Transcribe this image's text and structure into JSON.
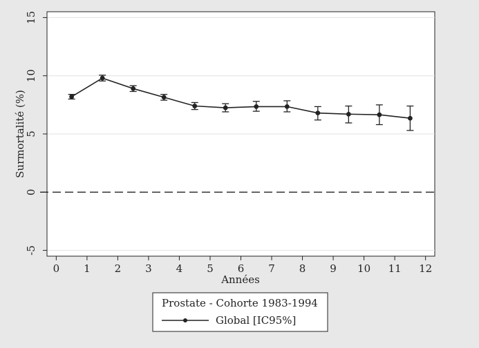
{
  "chart_data": {
    "type": "line",
    "title": "",
    "xlabel": "Années",
    "ylabel": "Surmortalité (%)",
    "xlim": [
      -0.3,
      12.3
    ],
    "ylim": [
      -5.5,
      15.5
    ],
    "xticks": [
      "0",
      "1",
      "2",
      "3",
      "4",
      "5",
      "6",
      "7",
      "8",
      "9",
      "10",
      "11",
      "12"
    ],
    "yticks": [
      "-5",
      "0",
      "5",
      "10",
      "15"
    ],
    "grid": true,
    "reference_line": {
      "y": 0,
      "style": "dashed"
    },
    "legend": {
      "title": "Prostate - Cohorte 1983-1994",
      "placement": "bottom-center",
      "entries": [
        "Global [IC95%]"
      ]
    },
    "series": [
      {
        "name": "Global [IC95%]",
        "color": "#222222",
        "x": [
          0.5,
          1.5,
          2.5,
          3.5,
          4.5,
          5.5,
          6.5,
          7.5,
          8.5,
          9.5,
          10.5,
          11.5
        ],
        "y": [
          8.2,
          9.8,
          8.9,
          8.15,
          7.4,
          7.25,
          7.35,
          7.35,
          6.8,
          6.7,
          6.65,
          6.35
        ],
        "lower": [
          8.0,
          9.55,
          8.65,
          7.9,
          7.1,
          6.9,
          6.95,
          6.9,
          6.2,
          5.95,
          5.8,
          5.3
        ],
        "upper": [
          8.4,
          10.05,
          9.15,
          8.4,
          7.7,
          7.6,
          7.8,
          7.85,
          7.35,
          7.4,
          7.5,
          7.4
        ]
      }
    ]
  }
}
